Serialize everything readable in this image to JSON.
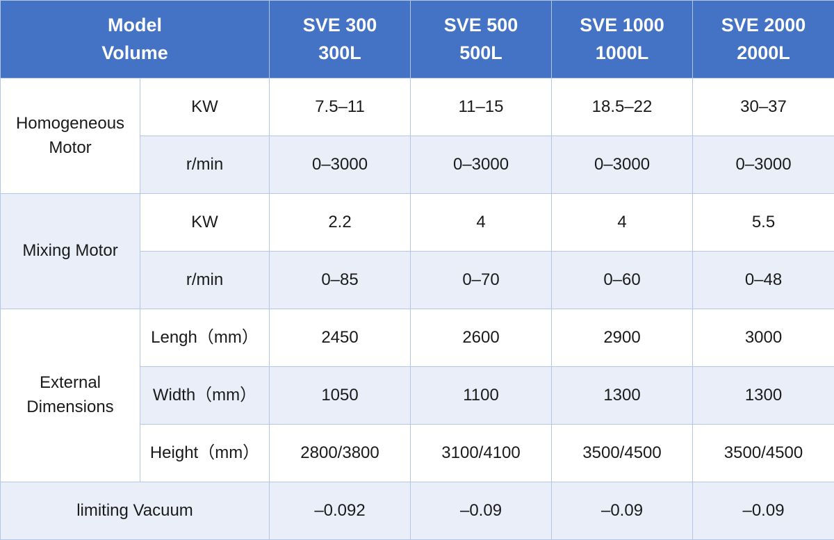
{
  "header": {
    "label_line1": "Model",
    "label_line2": "Volume",
    "models": [
      {
        "name": "SVE 300",
        "volume": "300L"
      },
      {
        "name": "SVE 500",
        "volume": "500L"
      },
      {
        "name": "SVE 1000",
        "volume": "1000L"
      },
      {
        "name": "SVE 2000",
        "volume": "2000L"
      }
    ]
  },
  "groups": {
    "homogeneous": {
      "line1": "Homogeneous",
      "line2": "Motor"
    },
    "mixing": {
      "label": "Mixing Motor"
    },
    "external": {
      "line1": "External",
      "line2": "Dimensions"
    }
  },
  "rows": [
    {
      "param": "KW",
      "values": [
        "7.5–11",
        "11–15",
        "18.5–22",
        "30–37"
      ]
    },
    {
      "param": "r/min",
      "values": [
        "0–3000",
        "0–3000",
        "0–3000",
        "0–3000"
      ]
    },
    {
      "param": "KW",
      "values": [
        "2.2",
        "4",
        "4",
        "5.5"
      ]
    },
    {
      "param": "r/min",
      "values": [
        "0–85",
        "0–70",
        "0–60",
        "0–48"
      ]
    },
    {
      "param": "Lengh（mm）",
      "values": [
        "2450",
        "2600",
        "2900",
        "3000"
      ]
    },
    {
      "param": "Width（mm）",
      "values": [
        "1050",
        "1100",
        "1300",
        "1300"
      ]
    },
    {
      "param": "Height（mm）",
      "values": [
        "2800/3800",
        "3100/4100",
        "3500/4500",
        "3500/4500"
      ]
    }
  ],
  "vacuum": {
    "label": "limiting Vacuum",
    "values": [
      "–0.092",
      "–0.09",
      "–0.09",
      "–0.09"
    ]
  }
}
